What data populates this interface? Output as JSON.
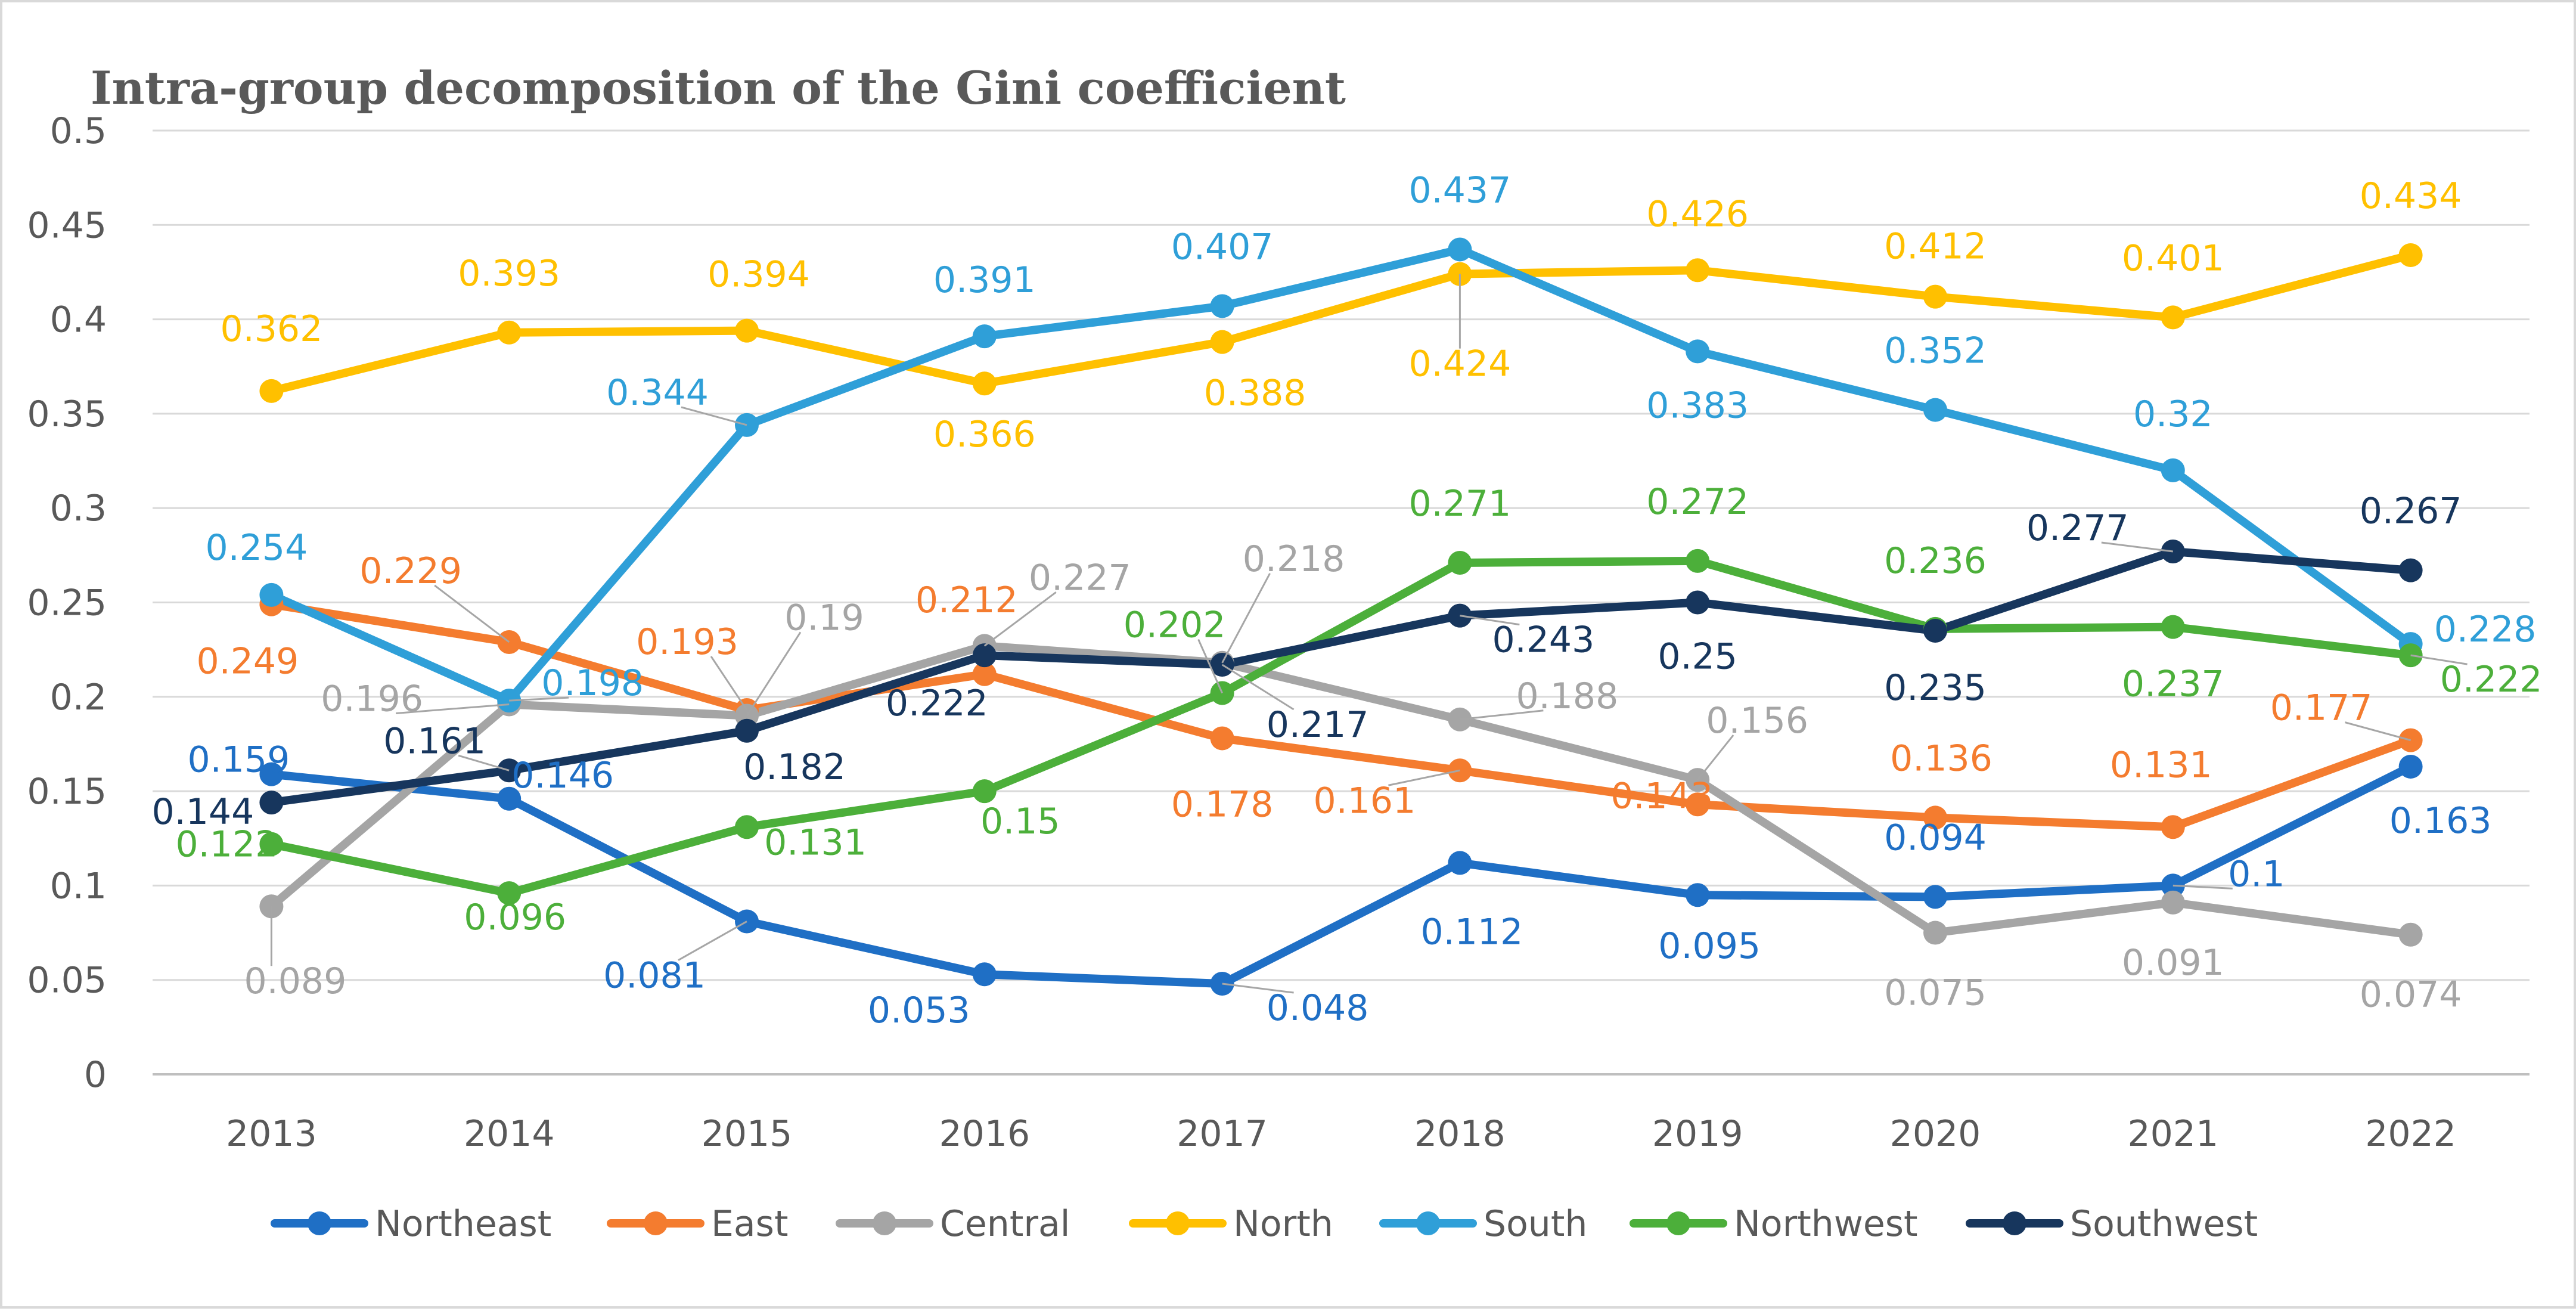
{
  "chart_data": {
    "type": "line",
    "title": "Intra-group decomposition of the Gini coefficient",
    "xlabel": "",
    "ylabel": "",
    "x": [
      "2013",
      "2014",
      "2015",
      "2016",
      "2017",
      "2018",
      "2019",
      "2020",
      "2021",
      "2022"
    ],
    "ylim": [
      0,
      0.5
    ],
    "yticks": [
      "0",
      "0.05",
      "0.1",
      "0.15",
      "0.2",
      "0.25",
      "0.3",
      "0.35",
      "0.4",
      "0.45",
      "0.5"
    ],
    "grid": true,
    "legend_position": "bottom",
    "series": [
      {
        "name": "Northeast",
        "color": "#1f6fc5",
        "values": [
          0.159,
          0.146,
          0.081,
          0.053,
          0.048,
          0.112,
          0.095,
          0.094,
          0.1,
          0.163
        ],
        "labels": [
          "0.159",
          "0.146",
          "0.081",
          "0.053",
          "0.048",
          "0.112",
          "0.095",
          "0.094",
          "0.1",
          "0.163"
        ]
      },
      {
        "name": "East",
        "color": "#f47c2f",
        "values": [
          0.249,
          0.229,
          0.193,
          0.212,
          0.178,
          0.161,
          0.143,
          0.136,
          0.131,
          0.177
        ],
        "labels": [
          "0.249",
          "0.229",
          "0.193",
          "0.212",
          "0.178",
          "0.161",
          "0.143",
          "0.136",
          "0.131",
          "0.177"
        ]
      },
      {
        "name": "Central",
        "color": "#a5a5a5",
        "values": [
          0.089,
          0.196,
          0.19,
          0.227,
          0.218,
          0.188,
          0.156,
          0.075,
          0.091,
          0.074
        ],
        "labels": [
          "0.089",
          "0.196",
          "0.19",
          "0.227",
          "0.218",
          "0.188",
          "0.156",
          "0.075",
          "0.091",
          "0.074"
        ]
      },
      {
        "name": "North",
        "color": "#ffc000",
        "values": [
          0.362,
          0.393,
          0.394,
          0.366,
          0.388,
          0.424,
          0.426,
          0.412,
          0.401,
          0.434
        ],
        "labels": [
          "0.362",
          "0.393",
          "0.394",
          "0.366",
          "0.388",
          "0.424",
          "0.426",
          "0.412",
          "0.401",
          "0.434"
        ]
      },
      {
        "name": "South",
        "color": "#2f9fd8",
        "values": [
          0.254,
          0.198,
          0.344,
          0.391,
          0.407,
          0.437,
          0.383,
          0.352,
          0.32,
          0.228
        ],
        "labels": [
          "0.254",
          "0.198",
          "0.344",
          "0.391",
          "0.407",
          "0.437",
          "0.383",
          "0.352",
          "0.32",
          "0.228"
        ]
      },
      {
        "name": "Northwest",
        "color": "#4caf3a",
        "values": [
          0.122,
          0.096,
          0.131,
          0.15,
          0.202,
          0.271,
          0.272,
          0.236,
          0.237,
          0.222
        ],
        "labels": [
          "0.122",
          "0.096",
          "0.131",
          "0.15",
          "0.202",
          "0.271",
          "0.272",
          "0.236",
          "0.237",
          "0.222"
        ]
      },
      {
        "name": "Southwest",
        "color": "#17365d",
        "values": [
          0.144,
          0.161,
          0.182,
          0.222,
          0.217,
          0.243,
          0.25,
          0.235,
          0.277,
          0.267
        ],
        "labels": [
          "0.144",
          "0.161",
          "0.182",
          "0.222",
          "0.217",
          "0.243",
          "0.25",
          "0.235",
          "0.277",
          "0.267"
        ]
      }
    ]
  }
}
